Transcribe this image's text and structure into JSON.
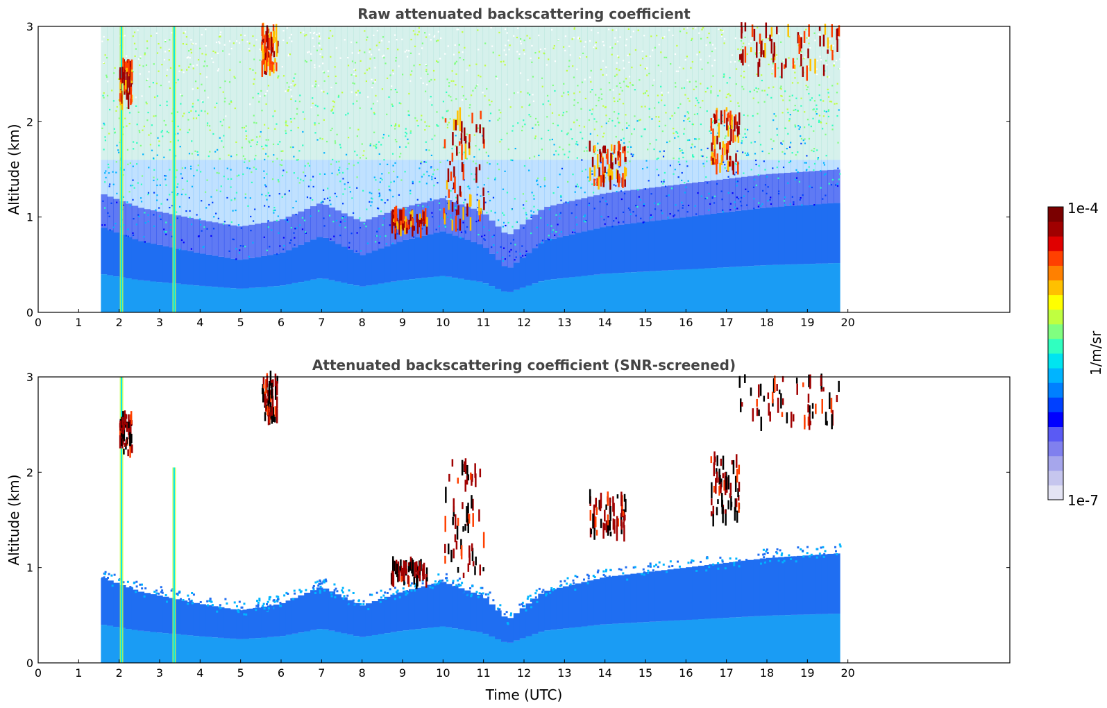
{
  "chart_data": [
    {
      "type": "heatmap",
      "title": "Raw attenuated backscattering coefficient",
      "xlabel": "",
      "ylabel": "Altitude (km)",
      "xlim": [
        0,
        24
      ],
      "ylim": [
        0,
        3
      ],
      "x_ticks": [
        "0",
        "1",
        "2",
        "3",
        "4",
        "5",
        "6",
        "7",
        "8",
        "9",
        "10",
        "11",
        "12",
        "13",
        "14",
        "15",
        "16",
        "17",
        "18",
        "19",
        "20"
      ],
      "y_ticks": [
        "0",
        "1",
        "2",
        "3"
      ],
      "data_time_range": [
        1.55,
        19.8
      ],
      "mode": "raw",
      "boundary_layer_top_km": [
        [
          1.55,
          0.9
        ],
        [
          2.5,
          0.75
        ],
        [
          4,
          0.62
        ],
        [
          5,
          0.55
        ],
        [
          6,
          0.62
        ],
        [
          7,
          0.8
        ],
        [
          8,
          0.6
        ],
        [
          9,
          0.75
        ],
        [
          10,
          0.85
        ],
        [
          11,
          0.7
        ],
        [
          11.6,
          0.45
        ],
        [
          12.5,
          0.75
        ],
        [
          14,
          0.9
        ],
        [
          16,
          1.0
        ],
        [
          18,
          1.1
        ],
        [
          19.8,
          1.15
        ]
      ],
      "cloud_features": [
        {
          "t": [
            5.5,
            5.9
          ],
          "z": [
            2.55,
            3.0
          ],
          "label": "cirrus"
        },
        {
          "t": [
            2.0,
            2.3
          ],
          "z": [
            2.2,
            2.6
          ],
          "label": "cloud"
        },
        {
          "t": [
            8.7,
            9.6
          ],
          "z": [
            0.85,
            1.05
          ],
          "label": "cloud"
        },
        {
          "t": [
            10.0,
            11.0
          ],
          "z": [
            0.9,
            2.1
          ],
          "label": "cloud"
        },
        {
          "t": [
            13.6,
            14.5
          ],
          "z": [
            1.35,
            1.75
          ],
          "label": "cloud"
        },
        {
          "t": [
            16.6,
            17.3
          ],
          "z": [
            1.5,
            2.15
          ],
          "label": "cloud"
        },
        {
          "t": [
            17.3,
            19.8
          ],
          "z": [
            2.5,
            3.0
          ],
          "label": "cirrus"
        }
      ],
      "vertical_streaks": [
        {
          "t": 2.05,
          "z": [
            0,
            3.0
          ]
        },
        {
          "t": 3.35,
          "z": [
            0,
            3.0
          ]
        }
      ]
    },
    {
      "type": "heatmap",
      "title": "Attenuated backscattering coefficient (SNR-screened)",
      "xlabel": "Time (UTC)",
      "ylabel": "Altitude (km)",
      "xlim": [
        0,
        24
      ],
      "ylim": [
        0,
        3
      ],
      "x_ticks": [
        "0",
        "1",
        "2",
        "3",
        "4",
        "5",
        "6",
        "7",
        "8",
        "9",
        "10",
        "11",
        "12",
        "13",
        "14",
        "15",
        "16",
        "17",
        "18",
        "19",
        "20"
      ],
      "y_ticks": [
        "0",
        "1",
        "2",
        "3"
      ],
      "data_time_range": [
        1.55,
        19.8
      ],
      "mode": "screened"
    }
  ],
  "colorbar": {
    "label": "1/m/sr",
    "max_label": "1e-4",
    "min_label": "1e-7",
    "colormap": [
      "#e4e4f4",
      "#c6c6ee",
      "#a6a6ec",
      "#8080ee",
      "#5a5af4",
      "#0000ff",
      "#0040ff",
      "#0080ff",
      "#00b4ff",
      "#00e4f0",
      "#30ffc0",
      "#80ff80",
      "#c0ff40",
      "#ffff00",
      "#ffc000",
      "#ff8000",
      "#ff4000",
      "#e00000",
      "#a00000",
      "#7a0000"
    ]
  }
}
